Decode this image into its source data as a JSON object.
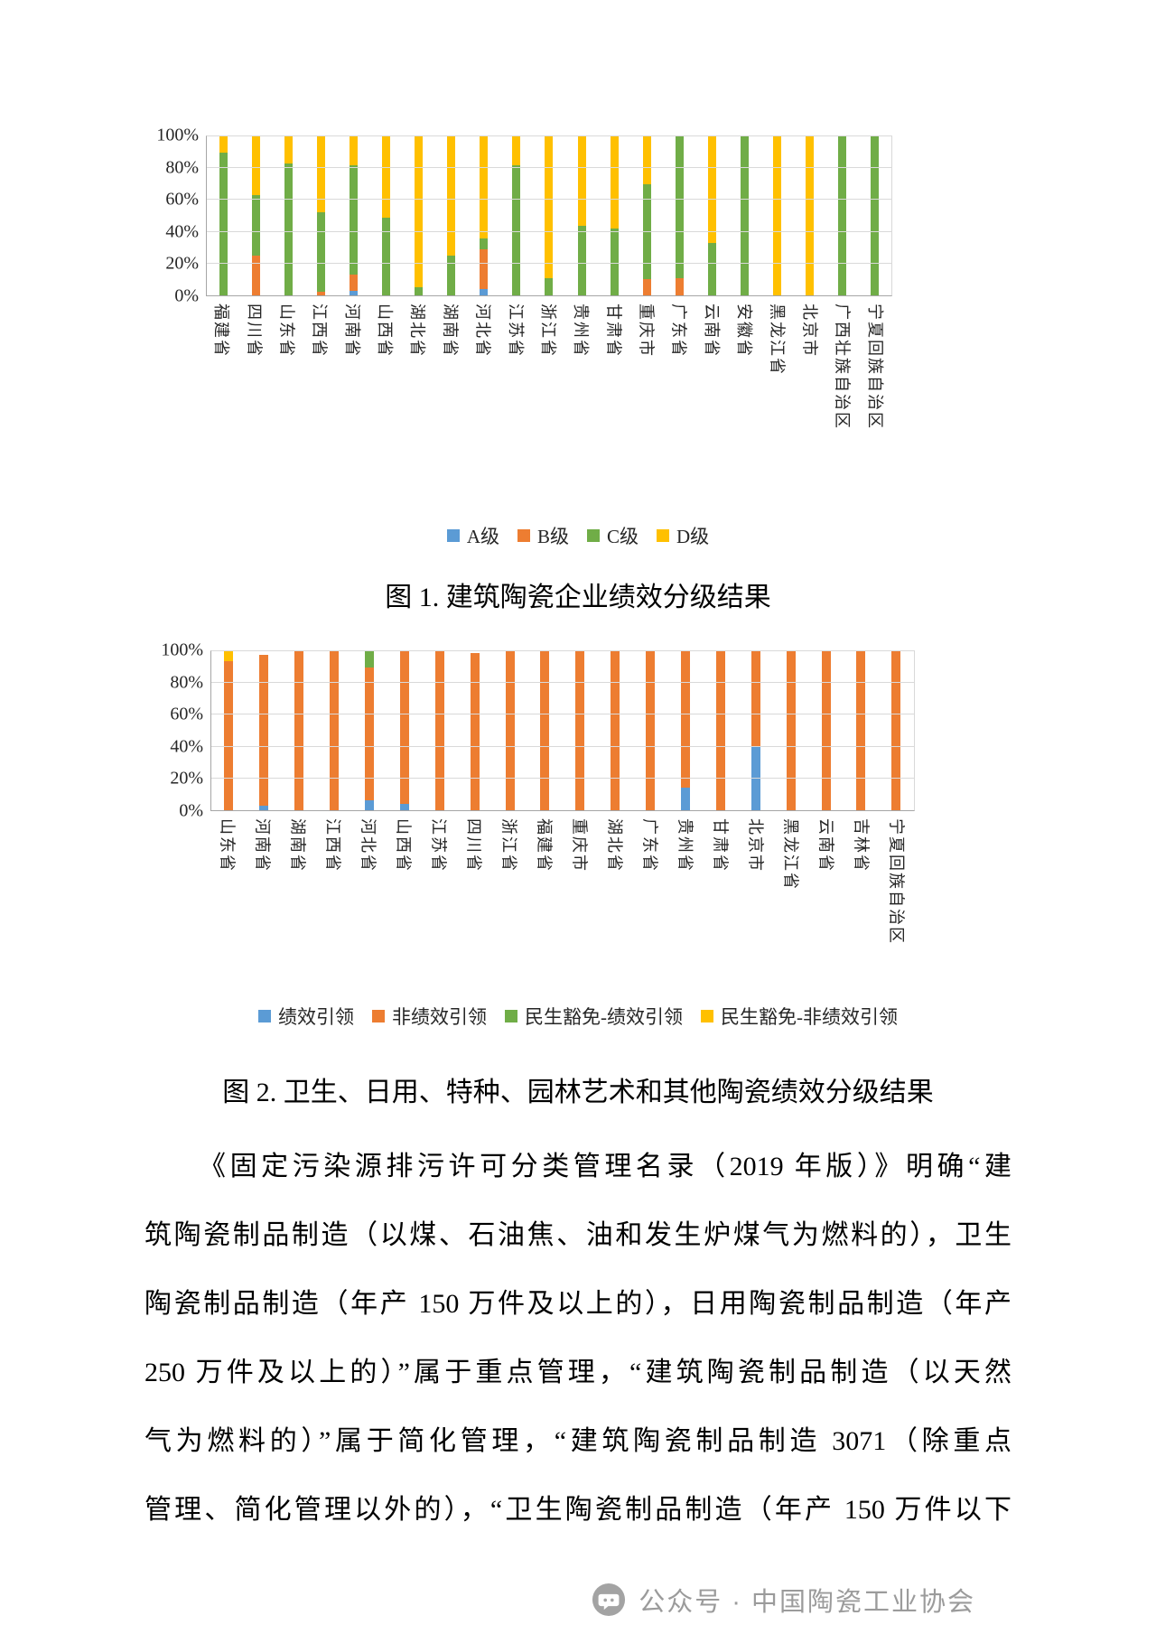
{
  "chart_data": [
    {
      "type": "bar",
      "stacked": true,
      "title": "图 1. 建筑陶瓷企业绩效分级结果",
      "xlabel": "",
      "ylabel": "",
      "ylim": [
        0,
        100
      ],
      "yticks": [
        0,
        20,
        40,
        60,
        80,
        100
      ],
      "ytick_format": "%",
      "grid": true,
      "legend_position": "bottom",
      "categories": [
        "福建省",
        "四川省",
        "山东省",
        "江西省",
        "河南省",
        "山西省",
        "湖北省",
        "湖南省",
        "河北省",
        "江苏省",
        "浙江省",
        "贵州省",
        "甘肃省",
        "重庆市",
        "广东省",
        "云南省",
        "安徽省",
        "黑龙江省",
        "北京市",
        "广西壮族自治区",
        "宁夏回族自治区"
      ],
      "series": [
        {
          "name": "A级",
          "color": "#5B9BD5",
          "values": [
            0,
            0,
            0,
            0,
            3,
            0,
            0,
            0,
            4,
            0,
            0,
            0,
            0,
            0,
            0,
            0,
            0,
            0,
            0,
            0,
            0
          ]
        },
        {
          "name": "B级",
          "color": "#ED7D31",
          "values": [
            0,
            25,
            0,
            2,
            10,
            0,
            0,
            0,
            25,
            0,
            0,
            0,
            0,
            10,
            11,
            0,
            0,
            0,
            0,
            0,
            0
          ]
        },
        {
          "name": "C级",
          "color": "#70AD47",
          "values": [
            90,
            38,
            83,
            50,
            69,
            49,
            5,
            25,
            7,
            82,
            11,
            44,
            42,
            60,
            89,
            33,
            100,
            0,
            0,
            100,
            100
          ]
        },
        {
          "name": "D级",
          "color": "#FFC000",
          "values": [
            10,
            37,
            17,
            48,
            18,
            51,
            95,
            75,
            64,
            18,
            89,
            56,
            58,
            30,
            0,
            67,
            0,
            100,
            100,
            0,
            0
          ]
        }
      ]
    },
    {
      "type": "bar",
      "stacked": true,
      "title": "图 2. 卫生、日用、特种、园林艺术和其他陶瓷绩效分级结果",
      "xlabel": "",
      "ylabel": "",
      "ylim": [
        0,
        100
      ],
      "yticks": [
        0,
        20,
        40,
        60,
        80,
        100
      ],
      "ytick_format": "%",
      "grid": true,
      "legend_position": "bottom",
      "categories": [
        "山东省",
        "河南省",
        "湖南省",
        "江西省",
        "河北省",
        "山西省",
        "江苏省",
        "四川省",
        "浙江省",
        "福建省",
        "重庆市",
        "湖北省",
        "广东省",
        "贵州省",
        "甘肃省",
        "北京市",
        "黑龙江省",
        "云南省",
        "吉林省",
        "宁夏回族自治区"
      ],
      "series": [
        {
          "name": "绩效引领",
          "color": "#5B9BD5",
          "values": [
            0,
            3,
            0,
            0,
            6,
            4,
            0,
            0,
            0,
            0,
            0,
            0,
            0,
            14,
            0,
            40,
            0,
            0,
            0,
            0
          ]
        },
        {
          "name": "非绩效引领",
          "color": "#ED7D31",
          "values": [
            94,
            95,
            100,
            100,
            84,
            96,
            100,
            99,
            100,
            100,
            100,
            100,
            100,
            86,
            100,
            60,
            100,
            100,
            100,
            100
          ]
        },
        {
          "name": "民生豁免-绩效引领",
          "color": "#70AD47",
          "values": [
            0,
            0,
            0,
            0,
            10,
            0,
            0,
            0,
            0,
            0,
            0,
            0,
            0,
            0,
            0,
            0,
            0,
            0,
            0,
            0
          ]
        },
        {
          "name": "民生豁免-非绩效引领",
          "color": "#FFC000",
          "values": [
            6,
            0,
            0,
            0,
            0,
            0,
            0,
            0,
            0,
            0,
            0,
            0,
            0,
            0,
            0,
            0,
            0,
            0,
            0,
            0
          ]
        }
      ]
    }
  ],
  "paragraph_lines": [
    "《固定污染源排污许可分类管理名录（2019 年版）》明确“建",
    "筑陶瓷制品制造（以煤、石油焦、油和发生炉煤气为燃料的），卫生",
    "陶瓷制品制造（年产 150 万件及以上的），日用陶瓷制品制造（年产",
    "250 万件及以上的）”属于重点管理，“建筑陶瓷制品制造（以天然",
    "气为燃料的）”属于简化管理，“建筑陶瓷制品制造 3071（除重点",
    "管理、简化管理以外的），“卫生陶瓷制品制造（年产 150 万件以下"
  ],
  "footer": {
    "icon": "wechat-official-account-icon",
    "text": "公众号 · 中国陶瓷工业协会"
  }
}
